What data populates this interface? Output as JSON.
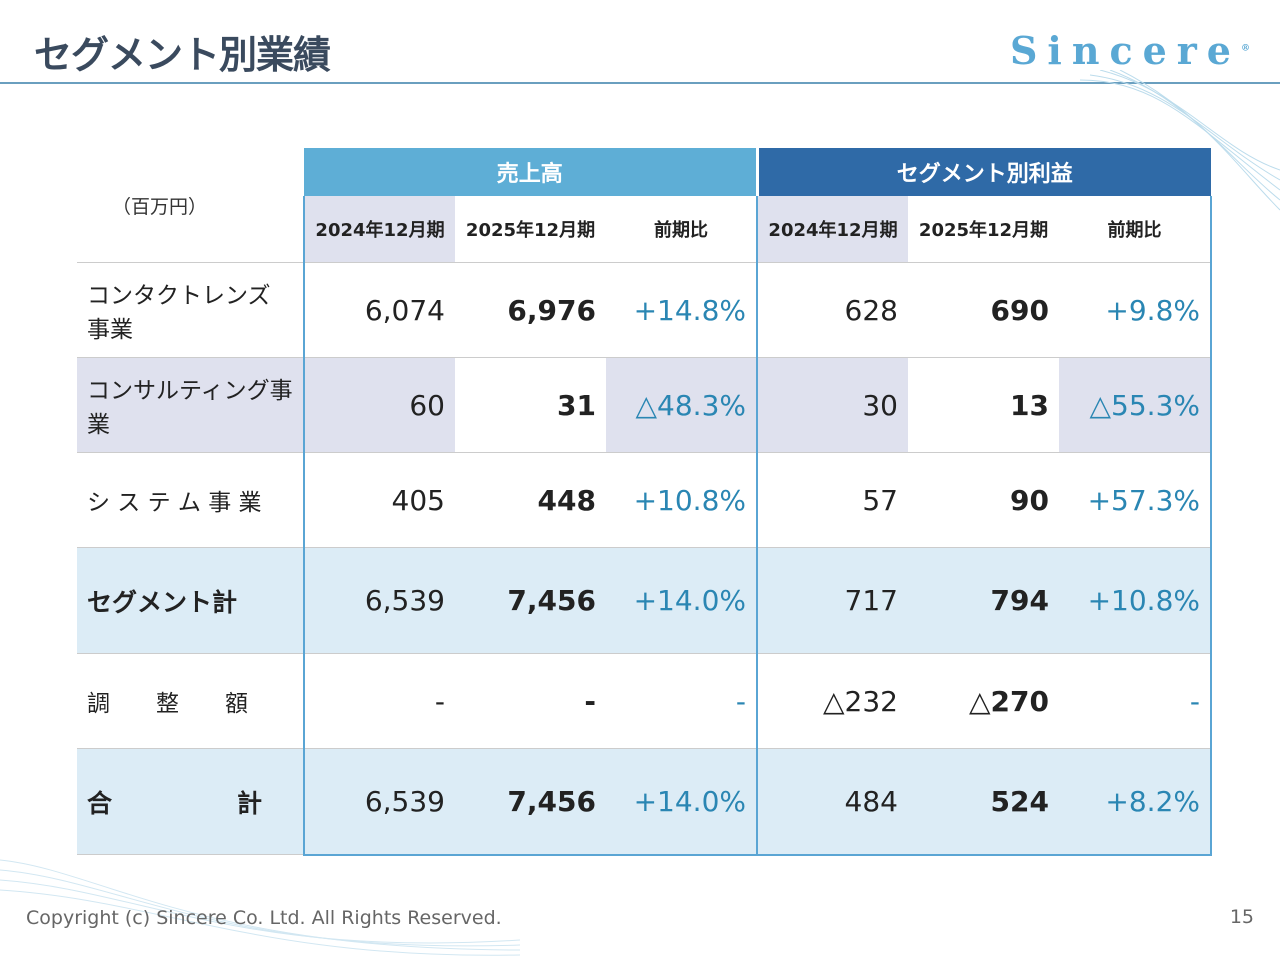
{
  "title": "セグメント別業績",
  "logo": "Sincere",
  "unit": "（百万円）",
  "groups": {
    "sales": "売上高",
    "profit": "セグメント別利益"
  },
  "columns": [
    "2024年12月期",
    "2025年12月期",
    "前期比",
    "2024年12月期",
    "2025年12月期",
    "前期比"
  ],
  "rows": [
    {
      "label": "コンタクトレンズ事業",
      "values": [
        "6,074",
        "6,976",
        "+14.8%",
        "628",
        "690",
        "+9.8%"
      ]
    },
    {
      "label": "コンサルティング事業",
      "values": [
        "60",
        "31",
        "△48.3%",
        "30",
        "13",
        "△55.3%"
      ]
    },
    {
      "label": "シ ス テ ム 事 業",
      "values": [
        "405",
        "448",
        "+10.8%",
        "57",
        "90",
        "+57.3%"
      ]
    },
    {
      "label": "セグメント計",
      "values": [
        "6,539",
        "7,456",
        "+14.0%",
        "717",
        "794",
        "+10.8%"
      ]
    },
    {
      "label": "調　　整　　額",
      "values": [
        "-",
        "-",
        "-",
        "△232",
        "△270",
        "-"
      ]
    },
    {
      "label": "合　　　　　計",
      "values": [
        "6,539",
        "7,456",
        "+14.0%",
        "484",
        "524",
        "+8.2%"
      ]
    }
  ],
  "footer": "Copyright (c) Sincere Co. Ltd. All Rights Reserved.",
  "page_number": "15",
  "colors": {
    "sales_header": "#5eaed6",
    "profit_header": "#2f6aa7",
    "ratio_text": "#2a86b3",
    "title": "#3a4a5e"
  }
}
